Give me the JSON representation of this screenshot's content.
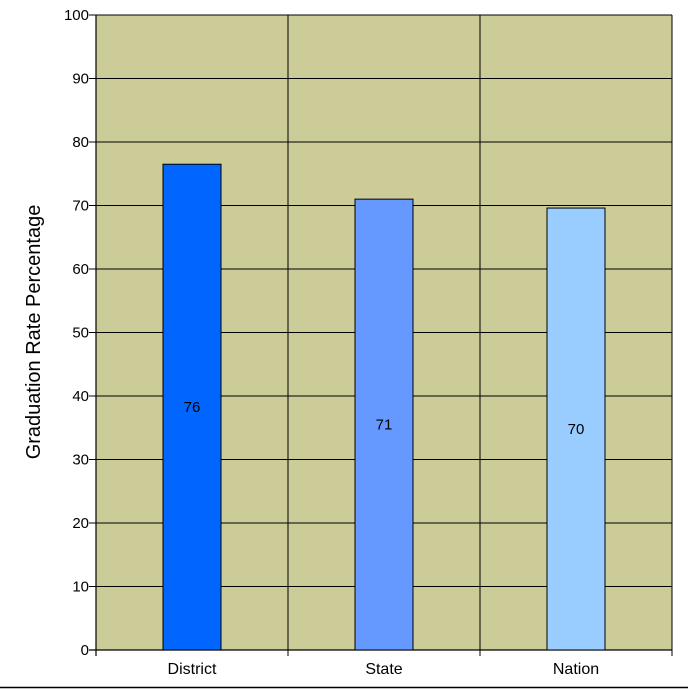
{
  "chart_data": {
    "type": "bar",
    "title": "",
    "xlabel": "",
    "ylabel": "Graduation Rate Percentage",
    "ylim": [
      0,
      100
    ],
    "yticks": [
      0,
      10,
      20,
      30,
      40,
      50,
      60,
      70,
      80,
      90,
      100
    ],
    "grid": true,
    "categories": [
      "District",
      "State",
      "Nation"
    ],
    "values": [
      76.5,
      71,
      69.6
    ],
    "data_labels": [
      "76",
      "71",
      "70"
    ],
    "colors": {
      "plot_background": "#CCCC99",
      "gridline": "#000000",
      "bars": [
        "#0066FF",
        "#6699FF",
        "#99CCFF"
      ]
    }
  }
}
